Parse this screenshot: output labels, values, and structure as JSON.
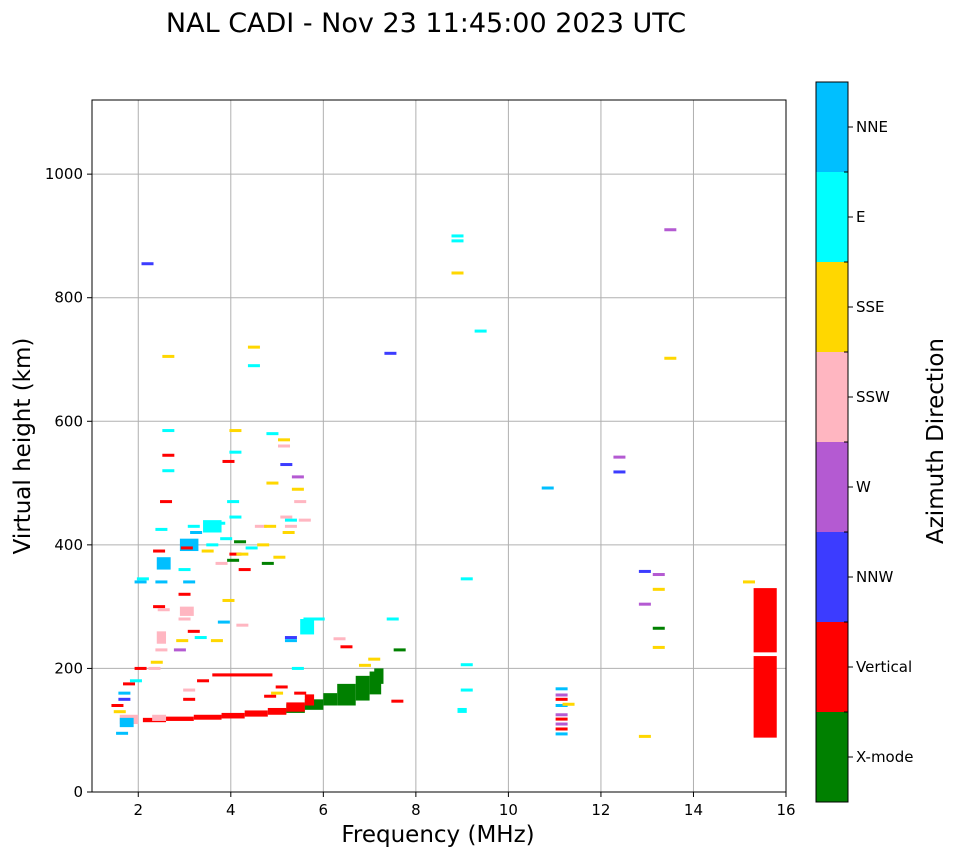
{
  "chart_data": {
    "type": "scatter",
    "title": "NAL CADI - Nov 23 11:45:00 2023 UTC",
    "xlabel": "Frequency (MHz)",
    "ylabel": "Virtual height (km)",
    "xlim": [
      1,
      16
    ],
    "ylim": [
      0,
      1120
    ],
    "xticks": [
      2,
      4,
      6,
      8,
      10,
      12,
      14,
      16
    ],
    "yticks": [
      0,
      200,
      400,
      600,
      800,
      1000
    ],
    "grid": true,
    "colorbar": {
      "label": "Azimuth Direction",
      "position": "right",
      "categories": [
        {
          "name": "X-mode",
          "color": "#008000"
        },
        {
          "name": "Vertical",
          "color": "#ff0000"
        },
        {
          "name": "NNW",
          "color": "#3c3cff"
        },
        {
          "name": "W",
          "color": "#b45ad2"
        },
        {
          "name": "SSW",
          "color": "#ffb6c1"
        },
        {
          "name": "SSE",
          "color": "#ffd700"
        },
        {
          "name": "E",
          "color": "#00ffff"
        },
        {
          "name": "NNE",
          "color": "#00bfff"
        }
      ]
    },
    "segments": [
      {
        "dir": "X-mode",
        "f0": 4.9,
        "f1": 5.2,
        "h0": 126,
        "h1": 135
      },
      {
        "dir": "X-mode",
        "f0": 5.2,
        "f1": 5.6,
        "h0": 128,
        "h1": 142
      },
      {
        "dir": "X-mode",
        "f0": 5.6,
        "f1": 6.0,
        "h0": 133,
        "h1": 150
      },
      {
        "dir": "X-mode",
        "f0": 6.0,
        "f1": 6.3,
        "h0": 140,
        "h1": 160
      },
      {
        "dir": "X-mode",
        "f0": 6.3,
        "f1": 6.7,
        "h0": 140,
        "h1": 175
      },
      {
        "dir": "X-mode",
        "f0": 6.7,
        "f1": 7.0,
        "h0": 148,
        "h1": 188
      },
      {
        "dir": "X-mode",
        "f0": 7.0,
        "f1": 7.25,
        "h0": 158,
        "h1": 195
      },
      {
        "dir": "X-mode",
        "f0": 7.1,
        "f1": 7.3,
        "h0": 175,
        "h1": 200
      },
      {
        "dir": "Vertical",
        "f0": 2.1,
        "f1": 2.6,
        "h0": 113,
        "h1": 120
      },
      {
        "dir": "Vertical",
        "f0": 2.6,
        "f1": 3.2,
        "h0": 115,
        "h1": 122
      },
      {
        "dir": "Vertical",
        "f0": 3.2,
        "f1": 3.8,
        "h0": 117,
        "h1": 125
      },
      {
        "dir": "Vertical",
        "f0": 3.8,
        "f1": 4.3,
        "h0": 119,
        "h1": 128
      },
      {
        "dir": "Vertical",
        "f0": 4.3,
        "f1": 4.8,
        "h0": 122,
        "h1": 132
      },
      {
        "dir": "Vertical",
        "f0": 4.8,
        "f1": 5.2,
        "h0": 125,
        "h1": 136
      },
      {
        "dir": "Vertical",
        "f0": 5.2,
        "f1": 5.6,
        "h0": 130,
        "h1": 145
      },
      {
        "dir": "Vertical",
        "f0": 5.6,
        "f1": 5.8,
        "h0": 140,
        "h1": 158
      },
      {
        "dir": "Vertical",
        "f0": 3.6,
        "f1": 4.9,
        "h0": 187,
        "h1": 192
      },
      {
        "dir": "Vertical",
        "f0": 15.3,
        "f1": 15.8,
        "h0": 88,
        "h1": 220
      },
      {
        "dir": "Vertical",
        "f0": 15.3,
        "f1": 15.8,
        "h0": 226,
        "h1": 330
      },
      {
        "dir": "SSW",
        "f0": 1.6,
        "f1": 2.0,
        "h0": 110,
        "h1": 125
      },
      {
        "dir": "SSW",
        "f0": 2.3,
        "f1": 2.6,
        "h0": 115,
        "h1": 125
      },
      {
        "dir": "SSW",
        "f0": 2.9,
        "f1": 3.2,
        "h0": 285,
        "h1": 300
      },
      {
        "dir": "SSW",
        "f0": 2.4,
        "f1": 2.6,
        "h0": 240,
        "h1": 260
      },
      {
        "dir": "NNE",
        "f0": 1.6,
        "f1": 1.9,
        "h0": 105,
        "h1": 120
      },
      {
        "dir": "NNE",
        "f0": 2.9,
        "f1": 3.3,
        "h0": 390,
        "h1": 410
      },
      {
        "dir": "E",
        "f0": 3.4,
        "f1": 3.8,
        "h0": 420,
        "h1": 440
      },
      {
        "dir": "E",
        "f0": 5.5,
        "f1": 5.8,
        "h0": 255,
        "h1": 280
      },
      {
        "dir": "NNE",
        "f0": 2.4,
        "f1": 2.7,
        "h0": 360,
        "h1": 380
      },
      {
        "dir": "E",
        "f0": 8.9,
        "f1": 9.1,
        "h0": 128,
        "h1": 136
      }
    ],
    "points": [
      {
        "dir": "Vertical",
        "f": 1.55,
        "h": 140
      },
      {
        "dir": "NNE",
        "f": 1.7,
        "h": 160
      },
      {
        "dir": "Vertical",
        "f": 1.8,
        "h": 175
      },
      {
        "dir": "SSE",
        "f": 1.6,
        "h": 130
      },
      {
        "dir": "NNW",
        "f": 1.7,
        "h": 150
      },
      {
        "dir": "NNE",
        "f": 1.65,
        "h": 95
      },
      {
        "dir": "E",
        "f": 1.95,
        "h": 180
      },
      {
        "dir": "Vertical",
        "f": 2.05,
        "h": 200
      },
      {
        "dir": "NNE",
        "f": 2.05,
        "h": 340
      },
      {
        "dir": "E",
        "f": 2.1,
        "h": 345
      },
      {
        "dir": "SSE",
        "f": 2.4,
        "h": 210
      },
      {
        "dir": "SSW",
        "f": 2.35,
        "h": 200
      },
      {
        "dir": "SSW",
        "f": 2.5,
        "h": 230
      },
      {
        "dir": "Vertical",
        "f": 2.45,
        "h": 300
      },
      {
        "dir": "SSW",
        "f": 2.55,
        "h": 295
      },
      {
        "dir": "NNE",
        "f": 2.5,
        "h": 340
      },
      {
        "dir": "Vertical",
        "f": 2.45,
        "h": 390
      },
      {
        "dir": "E",
        "f": 2.5,
        "h": 425
      },
      {
        "dir": "Vertical",
        "f": 2.6,
        "h": 470
      },
      {
        "dir": "Vertical",
        "f": 2.65,
        "h": 545
      },
      {
        "dir": "E",
        "f": 2.65,
        "h": 520
      },
      {
        "dir": "E",
        "f": 2.65,
        "h": 585
      },
      {
        "dir": "SSE",
        "f": 2.65,
        "h": 705
      },
      {
        "dir": "NNW",
        "f": 2.2,
        "h": 855
      },
      {
        "dir": "Vertical",
        "f": 3.0,
        "h": 320
      },
      {
        "dir": "NNE",
        "f": 3.1,
        "h": 340
      },
      {
        "dir": "E",
        "f": 3.0,
        "h": 360
      },
      {
        "dir": "Vertical",
        "f": 3.05,
        "h": 395
      },
      {
        "dir": "E",
        "f": 3.2,
        "h": 430
      },
      {
        "dir": "NNE",
        "f": 3.25,
        "h": 420
      },
      {
        "dir": "SSW",
        "f": 3.0,
        "h": 280
      },
      {
        "dir": "W",
        "f": 2.9,
        "h": 230
      },
      {
        "dir": "SSE",
        "f": 2.95,
        "h": 245
      },
      {
        "dir": "Vertical",
        "f": 3.2,
        "h": 260
      },
      {
        "dir": "E",
        "f": 3.35,
        "h": 250
      },
      {
        "dir": "E",
        "f": 3.6,
        "h": 400
      },
      {
        "dir": "SSE",
        "f": 3.5,
        "h": 390
      },
      {
        "dir": "E",
        "f": 3.75,
        "h": 435
      },
      {
        "dir": "E",
        "f": 3.9,
        "h": 410
      },
      {
        "dir": "NNE",
        "f": 3.85,
        "h": 275
      },
      {
        "dir": "SSE",
        "f": 3.7,
        "h": 245
      },
      {
        "dir": "Vertical",
        "f": 3.4,
        "h": 180
      },
      {
        "dir": "SSW",
        "f": 3.1,
        "h": 165
      },
      {
        "dir": "Vertical",
        "f": 3.1,
        "h": 150
      },
      {
        "dir": "SSW",
        "f": 3.8,
        "h": 370
      },
      {
        "dir": "SSE",
        "f": 3.95,
        "h": 310
      },
      {
        "dir": "E",
        "f": 4.05,
        "h": 470
      },
      {
        "dir": "Vertical",
        "f": 3.95,
        "h": 535
      },
      {
        "dir": "SSE",
        "f": 4.1,
        "h": 585
      },
      {
        "dir": "E",
        "f": 4.1,
        "h": 550
      },
      {
        "dir": "E",
        "f": 4.1,
        "h": 445
      },
      {
        "dir": "X-mode",
        "f": 4.05,
        "h": 375
      },
      {
        "dir": "X-mode",
        "f": 4.2,
        "h": 405
      },
      {
        "dir": "Vertical",
        "f": 4.1,
        "h": 385
      },
      {
        "dir": "SSE",
        "f": 4.25,
        "h": 385
      },
      {
        "dir": "SSW",
        "f": 4.25,
        "h": 270
      },
      {
        "dir": "E",
        "f": 4.45,
        "h": 395
      },
      {
        "dir": "Vertical",
        "f": 4.3,
        "h": 360
      },
      {
        "dir": "SSE",
        "f": 4.5,
        "h": 720
      },
      {
        "dir": "E",
        "f": 4.5,
        "h": 690
      },
      {
        "dir": "SSE",
        "f": 4.7,
        "h": 400
      },
      {
        "dir": "SSW",
        "f": 4.65,
        "h": 430
      },
      {
        "dir": "SSE",
        "f": 4.9,
        "h": 500
      },
      {
        "dir": "E",
        "f": 4.9,
        "h": 580
      },
      {
        "dir": "SSE",
        "f": 4.85,
        "h": 430
      },
      {
        "dir": "SSE",
        "f": 5.05,
        "h": 380
      },
      {
        "dir": "X-mode",
        "f": 4.8,
        "h": 370
      },
      {
        "dir": "SSE",
        "f": 5.15,
        "h": 570
      },
      {
        "dir": "SSW",
        "f": 5.15,
        "h": 560
      },
      {
        "dir": "NNW",
        "f": 5.2,
        "h": 530
      },
      {
        "dir": "SSW",
        "f": 5.2,
        "h": 445
      },
      {
        "dir": "SSW",
        "f": 5.3,
        "h": 430
      },
      {
        "dir": "SSE",
        "f": 5.25,
        "h": 420
      },
      {
        "dir": "E",
        "f": 5.3,
        "h": 440
      },
      {
        "dir": "SSE",
        "f": 5.45,
        "h": 490
      },
      {
        "dir": "SSW",
        "f": 5.5,
        "h": 470
      },
      {
        "dir": "SSW",
        "f": 5.6,
        "h": 440
      },
      {
        "dir": "W",
        "f": 5.45,
        "h": 510
      },
      {
        "dir": "NNW",
        "f": 5.3,
        "h": 250
      },
      {
        "dir": "NNE",
        "f": 5.3,
        "h": 245
      },
      {
        "dir": "E",
        "f": 5.7,
        "h": 280
      },
      {
        "dir": "E",
        "f": 5.45,
        "h": 200
      },
      {
        "dir": "Vertical",
        "f": 5.5,
        "h": 160
      },
      {
        "dir": "E",
        "f": 5.9,
        "h": 280
      },
      {
        "dir": "Vertical",
        "f": 5.1,
        "h": 170
      },
      {
        "dir": "Vertical",
        "f": 4.85,
        "h": 155
      },
      {
        "dir": "SSE",
        "f": 5.0,
        "h": 160
      },
      {
        "dir": "SSW",
        "f": 6.35,
        "h": 248
      },
      {
        "dir": "Vertical",
        "f": 6.5,
        "h": 235
      },
      {
        "dir": "SSE",
        "f": 6.9,
        "h": 205
      },
      {
        "dir": "SSE",
        "f": 7.1,
        "h": 215
      },
      {
        "dir": "NNW",
        "f": 7.45,
        "h": 710
      },
      {
        "dir": "E",
        "f": 7.5,
        "h": 280
      },
      {
        "dir": "X-mode",
        "f": 7.65,
        "h": 230
      },
      {
        "dir": "Vertical",
        "f": 7.6,
        "h": 147
      },
      {
        "dir": "E",
        "f": 8.9,
        "h": 900
      },
      {
        "dir": "E",
        "f": 8.9,
        "h": 892
      },
      {
        "dir": "SSE",
        "f": 8.9,
        "h": 840
      },
      {
        "dir": "E",
        "f": 9.4,
        "h": 746
      },
      {
        "dir": "E",
        "f": 9.1,
        "h": 345
      },
      {
        "dir": "E",
        "f": 9.1,
        "h": 206
      },
      {
        "dir": "E",
        "f": 9.1,
        "h": 165
      },
      {
        "dir": "NNE",
        "f": 10.85,
        "h": 492
      },
      {
        "dir": "NNE",
        "f": 11.15,
        "h": 167
      },
      {
        "dir": "W",
        "f": 11.15,
        "h": 157
      },
      {
        "dir": "Vertical",
        "f": 11.15,
        "h": 150
      },
      {
        "dir": "NNE",
        "f": 11.15,
        "h": 140
      },
      {
        "dir": "W",
        "f": 11.15,
        "h": 125
      },
      {
        "dir": "Vertical",
        "f": 11.15,
        "h": 118
      },
      {
        "dir": "W",
        "f": 11.15,
        "h": 110
      },
      {
        "dir": "Vertical",
        "f": 11.15,
        "h": 102
      },
      {
        "dir": "NNE",
        "f": 11.15,
        "h": 94
      },
      {
        "dir": "SSE",
        "f": 11.3,
        "h": 142
      },
      {
        "dir": "W",
        "f": 12.4,
        "h": 542
      },
      {
        "dir": "NNW",
        "f": 12.4,
        "h": 518
      },
      {
        "dir": "NNW",
        "f": 12.95,
        "h": 357
      },
      {
        "dir": "W",
        "f": 13.25,
        "h": 352
      },
      {
        "dir": "SSE",
        "f": 13.25,
        "h": 328
      },
      {
        "dir": "W",
        "f": 12.95,
        "h": 304
      },
      {
        "dir": "X-mode",
        "f": 13.25,
        "h": 265
      },
      {
        "dir": "SSE",
        "f": 13.25,
        "h": 234
      },
      {
        "dir": "SSE",
        "f": 12.95,
        "h": 90
      },
      {
        "dir": "W",
        "f": 13.5,
        "h": 910
      },
      {
        "dir": "SSE",
        "f": 13.5,
        "h": 702
      },
      {
        "dir": "SSE",
        "f": 15.2,
        "h": 340
      }
    ]
  }
}
